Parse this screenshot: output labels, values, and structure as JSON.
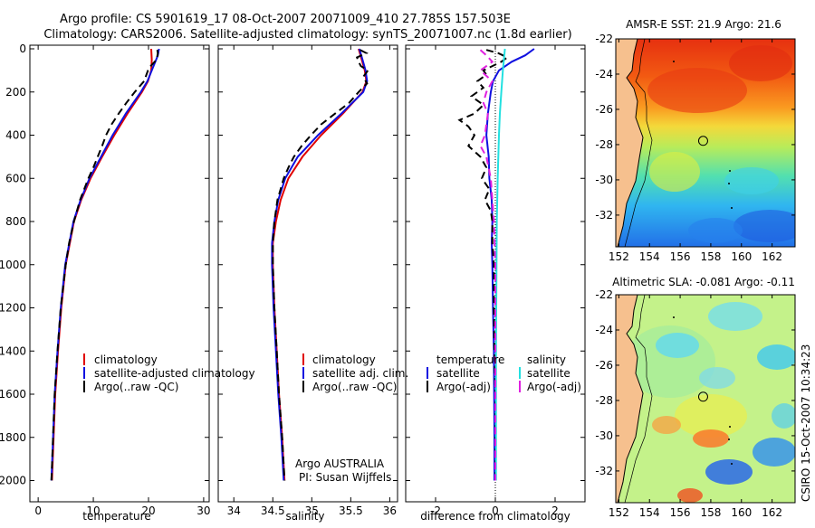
{
  "header": {
    "title_line1": "Argo profile: CS 5901619_17 08-Oct-2007 20071009_410 27.785S 157.503E",
    "title_line2": "Climatology: CARS2006. Satellite-adjusted climatology: synTS_20071007.nc (1.8d earlier)"
  },
  "footer_vertical": "CSIRO 15-Oct-2007 10:34:23",
  "credit": {
    "line1": "Argo AUSTRALIA",
    "line2": "PI: Susan Wijffels"
  },
  "colors": {
    "red": "#e00000",
    "blue": "#1010e0",
    "black": "#000000",
    "cyan": "#22e0e0",
    "magenta": "#e020e0",
    "land": "#f6c08e"
  },
  "chart_data": [
    {
      "type": "line",
      "xlabel": "temperature",
      "ylim": [
        0,
        2050
      ],
      "xlim": [
        -1.5,
        31
      ],
      "xticks": [
        "0",
        "10",
        "20",
        "30"
      ],
      "yticks": [
        "0",
        "200",
        "400",
        "600",
        "800",
        "1000",
        "1200",
        "1400",
        "1600",
        "1800",
        "2000"
      ],
      "legend": [
        "climatology",
        "satellite-adjusted climatology",
        "Argo(..raw -QC)"
      ],
      "series": [
        {
          "name": "climatology",
          "color": "red",
          "dash": "",
          "depth": [
            0,
            50,
            100,
            150,
            200,
            300,
            400,
            500,
            600,
            700,
            800,
            1000,
            1200,
            1400,
            1600,
            1800,
            2000
          ],
          "values": [
            20.5,
            20.6,
            20.5,
            19.9,
            18.8,
            16.2,
            13.8,
            11.6,
            9.5,
            7.8,
            6.5,
            5.0,
            4.2,
            3.6,
            3.1,
            2.8,
            2.5
          ]
        },
        {
          "name": "satellite-adjusted climatology",
          "color": "blue",
          "dash": "",
          "depth": [
            0,
            30,
            50,
            100,
            150,
            200,
            300,
            400,
            500,
            600,
            700,
            800,
            1000,
            1200,
            1400,
            1600,
            1800,
            2000
          ],
          "values": [
            21.9,
            21.7,
            21.4,
            20.6,
            19.8,
            18.6,
            15.9,
            13.5,
            11.4,
            9.3,
            7.7,
            6.4,
            4.9,
            4.1,
            3.5,
            3.0,
            2.7,
            2.4
          ]
        },
        {
          "name": "Argo(..raw -QC)",
          "color": "black",
          "dash": "8 5",
          "depth": [
            5,
            20,
            50,
            80,
            100,
            150,
            200,
            250,
            300,
            350,
            400,
            450,
            500,
            550,
            600,
            700,
            800,
            900,
            1000,
            1200,
            1400,
            1600,
            1800,
            2000
          ],
          "values": [
            21.6,
            21.7,
            21.5,
            20.4,
            19.9,
            19.2,
            17.5,
            16.0,
            14.6,
            13.3,
            12.3,
            11.6,
            10.8,
            10.0,
            9.1,
            7.6,
            6.5,
            5.6,
            5.0,
            4.1,
            3.5,
            3.0,
            2.7,
            2.4
          ]
        }
      ]
    },
    {
      "type": "line",
      "xlabel": "salinity",
      "ylim": [
        0,
        2050
      ],
      "xlim": [
        33.8,
        36.1
      ],
      "xticks": [
        "34",
        "34.5",
        "35",
        "35.5",
        "36"
      ],
      "legend": [
        "climatology",
        "satellite adj. clim.",
        "Argo(..raw -QC)"
      ],
      "series": [
        {
          "name": "climatology",
          "color": "red",
          "dash": "",
          "depth": [
            0,
            50,
            100,
            150,
            200,
            300,
            400,
            500,
            600,
            700,
            800,
            900,
            1000,
            1200,
            1400,
            1600,
            1800,
            2000
          ],
          "values": [
            35.6,
            35.64,
            35.68,
            35.7,
            35.65,
            35.4,
            35.12,
            34.88,
            34.7,
            34.6,
            34.54,
            34.5,
            34.5,
            34.52,
            34.55,
            34.58,
            34.62,
            34.65
          ]
        },
        {
          "name": "satellite adj. clim.",
          "color": "blue",
          "dash": "",
          "depth": [
            0,
            50,
            100,
            150,
            200,
            300,
            400,
            500,
            600,
            700,
            800,
            900,
            1000,
            1200,
            1400,
            1600,
            1800,
            2000
          ],
          "values": [
            35.61,
            35.65,
            35.69,
            35.71,
            35.66,
            35.38,
            35.08,
            34.82,
            34.66,
            34.57,
            34.52,
            34.49,
            34.49,
            34.51,
            34.54,
            34.57,
            34.61,
            34.64
          ]
        },
        {
          "name": "Argo(..raw -QC)",
          "color": "black",
          "dash": "8 5",
          "depth": [
            5,
            20,
            40,
            60,
            80,
            100,
            130,
            160,
            200,
            250,
            300,
            350,
            400,
            450,
            500,
            550,
            600,
            650,
            700,
            800,
            900,
            1000,
            1200,
            1400,
            1600,
            1800,
            2000
          ],
          "values": [
            35.62,
            35.7,
            35.58,
            35.6,
            35.63,
            35.72,
            35.66,
            35.71,
            35.6,
            35.48,
            35.3,
            35.12,
            34.99,
            34.87,
            34.77,
            34.7,
            34.64,
            34.6,
            34.56,
            34.52,
            34.5,
            34.5,
            34.52,
            34.55,
            34.58,
            34.62,
            34.65
          ]
        }
      ]
    },
    {
      "type": "line",
      "xlabel": "difference from climatology",
      "ylim": [
        0,
        2050
      ],
      "xlim": [
        -3,
        3
      ],
      "xticks": [
        "-2",
        "0",
        "2"
      ],
      "legend_left_title": "temperature",
      "legend_right_title": "salinity",
      "legend": [
        "satellite",
        "Argo(-adj)",
        "satellite",
        "Argo(-adj)"
      ],
      "series": [
        {
          "name": "temperature satellite",
          "color": "blue",
          "dash": "",
          "depth": [
            0,
            30,
            60,
            100,
            150,
            200,
            300,
            400,
            500,
            600,
            700,
            800,
            900,
            1000,
            1200,
            1400,
            1600,
            1800,
            2000
          ],
          "values": [
            1.3,
            1.0,
            0.55,
            0.12,
            -0.08,
            -0.15,
            -0.25,
            -0.3,
            -0.22,
            -0.2,
            -0.12,
            -0.1,
            -0.12,
            -0.1,
            -0.08,
            -0.05,
            -0.04,
            -0.03,
            -0.03
          ]
        },
        {
          "name": "temperature Argo(-adj)",
          "color": "black",
          "dash": "8 5",
          "depth": [
            5,
            20,
            40,
            60,
            80,
            100,
            120,
            150,
            180,
            220,
            260,
            300,
            330,
            360,
            400,
            450,
            500,
            550,
            600,
            650,
            700,
            750,
            800,
            900,
            1000,
            1200,
            1400,
            1600,
            1800,
            2000
          ],
          "values": [
            -0.3,
            0.1,
            0.4,
            0.2,
            -0.1,
            -0.4,
            -0.3,
            -0.6,
            -0.4,
            -0.8,
            -0.4,
            -0.7,
            -1.2,
            -0.9,
            -0.7,
            -0.9,
            -0.5,
            -0.3,
            -0.45,
            -0.2,
            -0.35,
            -0.15,
            -0.1,
            -0.1,
            -0.05,
            -0.05,
            -0.03,
            0,
            0,
            0
          ]
        },
        {
          "name": "salinity satellite",
          "color": "cyan",
          "dash": "",
          "depth": [
            0,
            100,
            200,
            300,
            400,
            600,
            800,
            1000,
            1400,
            2000
          ],
          "values": [
            0.32,
            0.25,
            0.2,
            0.15,
            0.12,
            0.08,
            0.05,
            0.04,
            0.02,
            0.02
          ]
        },
        {
          "name": "salinity Argo(-adj)",
          "color": "magenta",
          "dash": "8 5",
          "depth": [
            5,
            30,
            60,
            100,
            150,
            200,
            250,
            300,
            350,
            400,
            450,
            500,
            600,
            700,
            800,
            1000,
            1200,
            1400,
            1600,
            1800,
            2000
          ],
          "values": [
            -0.5,
            -0.3,
            -0.1,
            -0.5,
            -0.1,
            -0.3,
            -0.4,
            -0.25,
            -0.3,
            -0.35,
            -0.5,
            -0.3,
            -0.15,
            -0.1,
            -0.05,
            0,
            0,
            0,
            0,
            0,
            0
          ]
        }
      ]
    },
    {
      "type": "heatmap",
      "title": "AMSR-E SST: 21.9 Argo: 21.6",
      "xlim": [
        151.8,
        163.5
      ],
      "ylim": [
        -33.8,
        -22
      ],
      "xticks": [
        "152",
        "154",
        "156",
        "158",
        "160",
        "162"
      ],
      "yticks": [
        "-22",
        "-24",
        "-26",
        "-28",
        "-30",
        "-32"
      ],
      "float_position": {
        "lon": 157.5,
        "lat": -27.785
      }
    },
    {
      "type": "heatmap",
      "title": "Altimetric SLA: -0.081 Argo: -0.11",
      "xlim": [
        151.8,
        163.5
      ],
      "ylim": [
        -33.8,
        -22
      ],
      "xticks": [
        "152",
        "154",
        "156",
        "158",
        "160",
        "162"
      ],
      "yticks": [
        "-22",
        "-24",
        "-26",
        "-28",
        "-30",
        "-32"
      ],
      "float_position": {
        "lon": 157.5,
        "lat": -27.785
      }
    }
  ]
}
